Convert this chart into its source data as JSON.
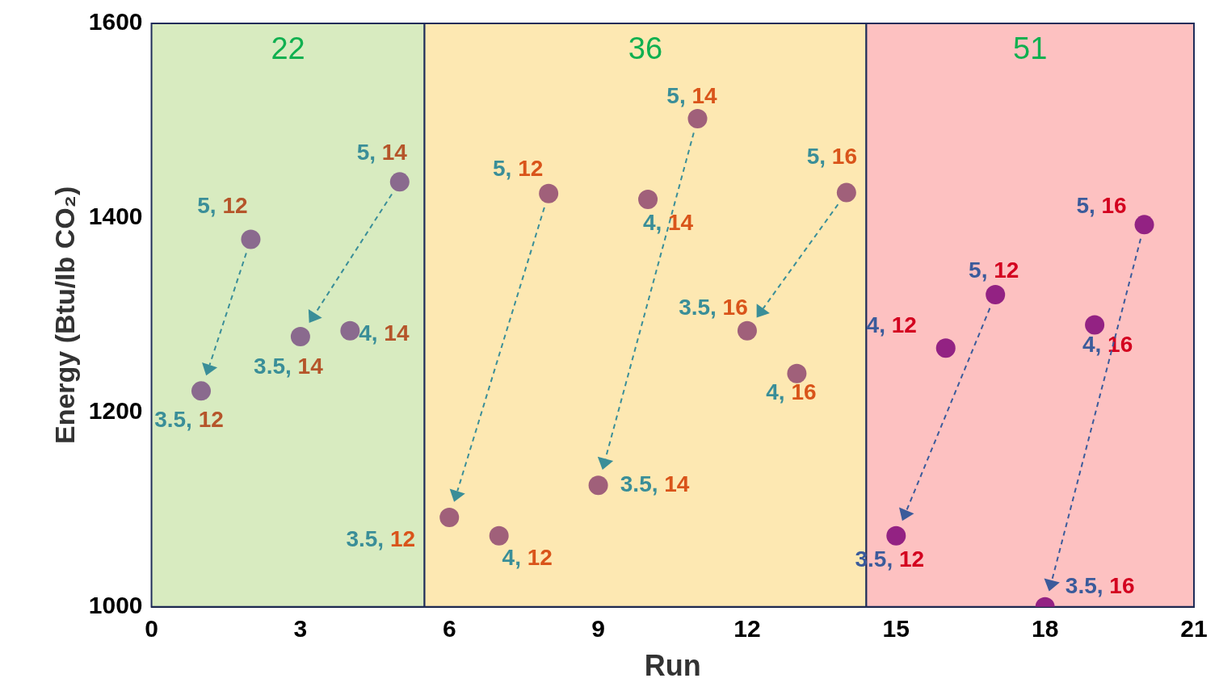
{
  "chart_data": {
    "type": "scatter",
    "xlabel": "Run",
    "ylabel": "Energy (Btu/Ib CO₂)",
    "x": [
      1,
      2,
      3,
      4,
      5,
      6,
      7,
      8,
      9,
      10,
      11,
      12,
      13,
      14,
      15,
      16,
      17,
      18,
      19,
      20
    ],
    "values": [
      1222,
      1378,
      1278,
      1284,
      1437,
      1092,
      1073,
      1425,
      1125,
      1419,
      1502,
      1284,
      1240,
      1426,
      1073,
      1266,
      1321,
      1000,
      1290,
      1393
    ],
    "colors": [
      "#8a6a8e",
      "#8a6a8e",
      "#8a6a8e",
      "#8a6a8e",
      "#8a6a8e",
      "#a0607a",
      "#a0607a",
      "#a0607a",
      "#a0607a",
      "#a0607a",
      "#a0607a",
      "#a0607a",
      "#a0607a",
      "#a0607a",
      "#932283",
      "#932283",
      "#932283",
      "#932283",
      "#932283",
      "#932283"
    ],
    "xlim": [
      0,
      21
    ],
    "xticks": [
      0,
      3,
      6,
      9,
      12,
      15,
      18,
      21
    ],
    "ylim": [
      1000,
      1600
    ],
    "yticks": [
      1000,
      1200,
      1400,
      1600
    ],
    "grid": false,
    "legend": false,
    "marker": "circle",
    "bands": [
      {
        "axis": "x",
        "from": 0,
        "to": 5.5,
        "label": "22",
        "color": "#d8ebc0"
      },
      {
        "axis": "x",
        "from": 5.5,
        "to": 14.4,
        "label": "36",
        "color": "#fde8b2"
      },
      {
        "axis": "x",
        "from": 14.4,
        "to": 21,
        "label": "51",
        "color": "#fdc1c1"
      }
    ],
    "annotations": [
      {
        "text": "3.5, 12",
        "x": 1,
        "y": 1222
      },
      {
        "text": "5, 12",
        "x": 2,
        "y": 1378
      },
      {
        "text": "3.5, 14",
        "x": 3,
        "y": 1278
      },
      {
        "text": "4, 14",
        "x": 4,
        "y": 1284
      },
      {
        "text": "5, 14",
        "x": 5,
        "y": 1437
      },
      {
        "text": "3.5, 12",
        "x": 6,
        "y": 1092
      },
      {
        "text": "4, 12",
        "x": 7,
        "y": 1073
      },
      {
        "text": "5, 12",
        "x": 8,
        "y": 1425
      },
      {
        "text": "3.5, 14",
        "x": 9,
        "y": 1125
      },
      {
        "text": "4, 14",
        "x": 10,
        "y": 1419
      },
      {
        "text": "5, 14",
        "x": 11,
        "y": 1502
      },
      {
        "text": "3.5, 16",
        "x": 12,
        "y": 1284
      },
      {
        "text": "4, 16",
        "x": 13,
        "y": 1240
      },
      {
        "text": "5, 16",
        "x": 14,
        "y": 1426
      },
      {
        "text": "3.5, 12",
        "x": 15,
        "y": 1073
      },
      {
        "text": "4, 12",
        "x": 16,
        "y": 1266
      },
      {
        "text": "5, 12",
        "x": 17,
        "y": 1321
      },
      {
        "text": "3.5, 16",
        "x": 18,
        "y": 1000
      },
      {
        "text": "4, 16",
        "x": 19,
        "y": 1290
      },
      {
        "text": "5, 16",
        "x": 20,
        "y": 1393
      }
    ]
  }
}
